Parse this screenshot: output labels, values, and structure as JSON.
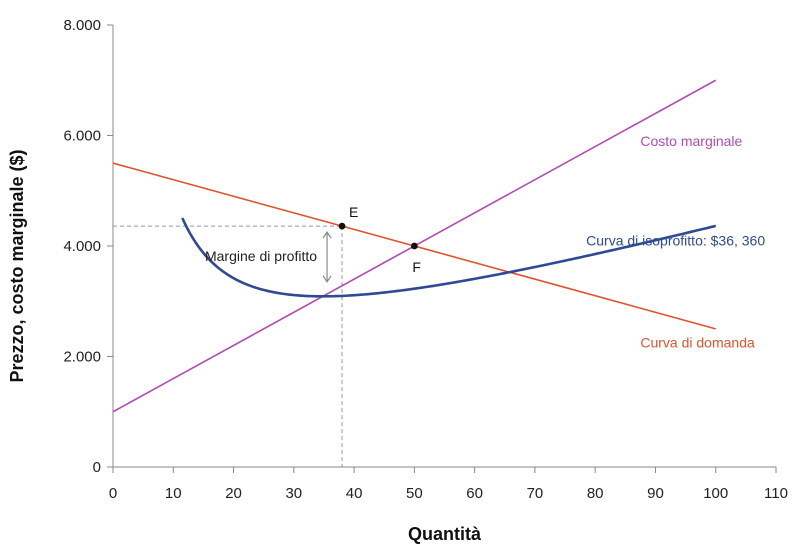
{
  "chart_data": {
    "type": "line",
    "xlabel": "Quantità",
    "ylabel": "Prezzo, costo marginale ($)",
    "xlim": [
      0,
      110
    ],
    "ylim": [
      0,
      8000
    ],
    "x_ticks": [
      0,
      10,
      20,
      30,
      40,
      50,
      60,
      70,
      80,
      90,
      100,
      110
    ],
    "x_tick_labels": [
      "0",
      "10",
      "20",
      "30",
      "40",
      "50",
      "60",
      "70",
      "80",
      "90",
      "100",
      "110"
    ],
    "y_ticks": [
      0,
      2000,
      4000,
      6000,
      8000
    ],
    "y_tick_labels": [
      "0",
      "2.000",
      "4.000",
      "6.000",
      "8.000"
    ],
    "series": [
      {
        "name": "Curva di domanda",
        "color": "#e0532c",
        "x": [
          0,
          100
        ],
        "y": [
          5500,
          2500
        ]
      },
      {
        "name": "Costo marginale",
        "color": "#b44bb5",
        "x": [
          0,
          100
        ],
        "y": [
          1000,
          7000
        ]
      },
      {
        "name": "Curva di isoprofitto: $36, 360",
        "color": "#2f4a94",
        "profit": 36360,
        "cost_intercept": 1000,
        "cost_slope": 60,
        "x_range": [
          11.5,
          100
        ]
      }
    ],
    "points": [
      {
        "label": "E",
        "x": 38,
        "y": 4360
      },
      {
        "label": "F",
        "x": 50,
        "y": 4000
      }
    ],
    "annotations": {
      "profit_margin": "Margine di profitto"
    }
  }
}
